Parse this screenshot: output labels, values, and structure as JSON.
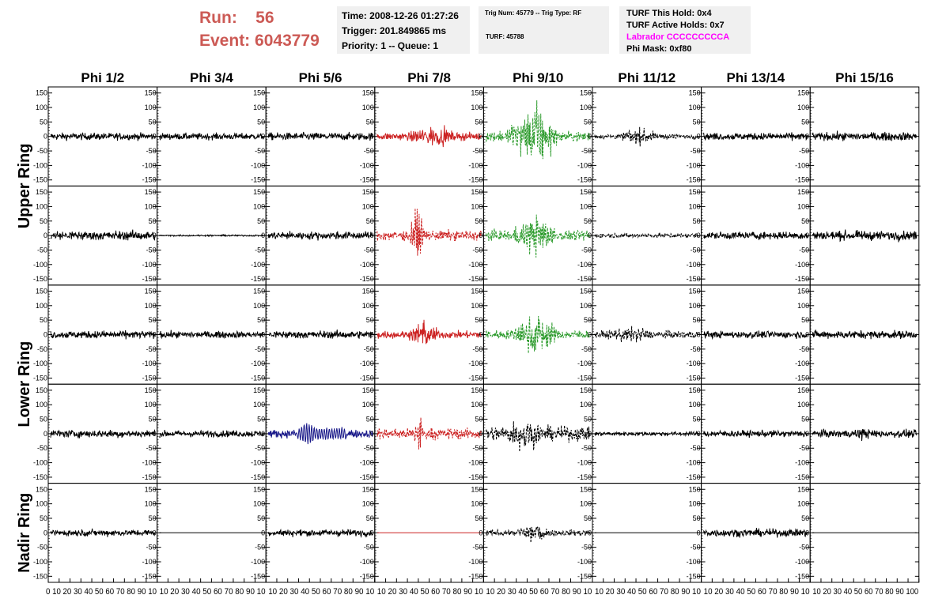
{
  "header": {
    "run_label": "Run:",
    "run_value": "56",
    "event_label": "Event:",
    "event_value": "6043779"
  },
  "info_panel": {
    "time": "Time: 2008-12-26 01:27:26",
    "trigger": "Trigger: 201.849865 ms",
    "priority": "Priority: 1 -- Queue: 1"
  },
  "trig_panel": {
    "trig_line": "Trig Num: 45779 -- Trig Type: RF",
    "turf_line": "TURF: 45788"
  },
  "turf_panel": {
    "hold": "TURF This Hold: 0x4",
    "active_holds": "TURF Active Holds: 0x7",
    "labrador": "Labrador CCCCCCCCCA",
    "phi_mask": "Phi Mask: 0xf80"
  },
  "colors": {
    "header_red": "#cc5a55",
    "labrador_magenta": "#ff00ff",
    "trace_black": "#000000",
    "trace_red": "#cc2222",
    "trace_green": "#2a9a2a",
    "trace_blue": "#1a1a8a",
    "panel_bg": "#f0f0f0"
  },
  "chart_data": {
    "type": "line",
    "columns": [
      "Phi 1/2",
      "Phi 3/4",
      "Phi 5/6",
      "Phi 7/8",
      "Phi 9/10",
      "Phi 11/12",
      "Phi 13/14",
      "Phi 15/16"
    ],
    "rings": [
      "Upper Ring",
      "Lower Ring",
      "Nadir Ring"
    ],
    "ring_rows": {
      "Upper Ring": [
        0,
        1
      ],
      "Lower Ring": [
        2,
        3
      ],
      "Nadir Ring": [
        4
      ]
    },
    "ylim": [
      -160,
      160
    ],
    "xlim": [
      0,
      100
    ],
    "y_ticks": [
      150,
      100,
      50,
      0,
      -50,
      -100,
      -150
    ],
    "y_tick_labels": [
      "150",
      "100",
      "50",
      "0",
      "-50",
      "-100",
      "-150"
    ],
    "x_tick_labels": [
      "0",
      "10",
      "20",
      "30",
      "40",
      "50",
      "60",
      "70",
      "80",
      "90",
      "100"
    ],
    "x_axis_strings": [
      "0 10 20 30 40 50 60 70 80 90 10",
      "10 20 30 40 50 60 70 80 90 10",
      "10 20 30 40 50 60 70 80 90 10",
      "10 20 30 40 50 60 70 80 90 10",
      "10 20 30 40 50 60 70 80 90 10",
      "10 20 30 40 50 60 70 80 90 10",
      "10 20 30 40 50 60 70 80 90 10",
      "10 20 30 40 50 60 70 80 90 100"
    ],
    "grid": false,
    "traces": [
      [
        {
          "color": "black",
          "dashed": false,
          "amp": 14,
          "burst": null
        },
        {
          "color": "black",
          "dashed": false,
          "amp": 13,
          "burst": null
        },
        {
          "color": "black",
          "dashed": false,
          "amp": 15,
          "burst": null
        },
        {
          "color": "red",
          "dashed": false,
          "amp": 15,
          "burst": [
            30,
            75,
            30
          ]
        },
        {
          "color": "green",
          "dashed": true,
          "amp": 20,
          "burst": [
            20,
            70,
            110
          ]
        },
        {
          "color": "black",
          "dashed": true,
          "amp": 10,
          "burst": [
            25,
            60,
            30
          ]
        },
        {
          "color": "black",
          "dashed": false,
          "amp": 14,
          "burst": null
        },
        {
          "color": "black",
          "dashed": false,
          "amp": 16,
          "burst": null
        }
      ],
      [
        {
          "color": "black",
          "dashed": false,
          "amp": 18,
          "burst": null
        },
        {
          "color": "black",
          "dashed": false,
          "amp": 3,
          "burst": null
        },
        {
          "color": "black",
          "dashed": false,
          "amp": 15,
          "burst": null
        },
        {
          "color": "red",
          "dashed": true,
          "amp": 20,
          "burst": [
            30,
            45,
            90
          ]
        },
        {
          "color": "green",
          "dashed": true,
          "amp": 20,
          "burst": [
            25,
            70,
            70
          ]
        },
        {
          "color": "black",
          "dashed": true,
          "amp": 9,
          "burst": null
        },
        {
          "color": "black",
          "dashed": false,
          "amp": 15,
          "burst": null
        },
        {
          "color": "black",
          "dashed": false,
          "amp": 18,
          "burst": null
        }
      ],
      [
        {
          "color": "black",
          "dashed": false,
          "amp": 15,
          "burst": null
        },
        {
          "color": "black",
          "dashed": false,
          "amp": 13,
          "burst": null
        },
        {
          "color": "black",
          "dashed": false,
          "amp": 15,
          "burst": null
        },
        {
          "color": "red",
          "dashed": false,
          "amp": 15,
          "burst": [
            30,
            60,
            45
          ]
        },
        {
          "color": "green",
          "dashed": true,
          "amp": 18,
          "burst": [
            25,
            70,
            70
          ]
        },
        {
          "color": "black",
          "dashed": true,
          "amp": 15,
          "burst": [
            15,
            55,
            20
          ]
        },
        {
          "color": "black",
          "dashed": false,
          "amp": 14,
          "burst": null
        },
        {
          "color": "black",
          "dashed": false,
          "amp": 16,
          "burst": null
        }
      ],
      [
        {
          "color": "black",
          "dashed": false,
          "amp": 15,
          "burst": null
        },
        {
          "color": "black",
          "dashed": false,
          "amp": 13,
          "burst": null
        },
        {
          "color": "blue",
          "dashed": false,
          "amp": 16,
          "burst": [
            30,
            45,
            20
          ]
        },
        {
          "color": "red",
          "dashed": true,
          "amp": 22,
          "burst": [
            35,
            45,
            80
          ]
        },
        {
          "color": "black",
          "dashed": true,
          "amp": 28,
          "burst": [
            20,
            55,
            50
          ]
        },
        {
          "color": "black",
          "dashed": false,
          "amp": 8,
          "burst": null
        },
        {
          "color": "black",
          "dashed": false,
          "amp": 13,
          "burst": null
        },
        {
          "color": "black",
          "dashed": false,
          "amp": 15,
          "burst": [
            40,
            55,
            15
          ]
        }
      ],
      [
        {
          "color": "black",
          "dashed": false,
          "amp": 13,
          "burst": null
        },
        {
          "color": "black",
          "dashed": false,
          "amp": 0,
          "burst": null
        },
        {
          "color": "black",
          "dashed": false,
          "amp": 13,
          "burst": null
        },
        {
          "color": "red",
          "dashed": false,
          "amp": 0,
          "burst": null
        },
        {
          "color": "black",
          "dashed": true,
          "amp": 12,
          "burst": [
            30,
            60,
            50
          ]
        },
        {
          "color": "black",
          "dashed": false,
          "amp": 0,
          "burst": null
        },
        {
          "color": "black",
          "dashed": false,
          "amp": 15,
          "burst": null
        },
        {
          "color": "black",
          "dashed": false,
          "amp": 0,
          "burst": null
        }
      ]
    ]
  }
}
